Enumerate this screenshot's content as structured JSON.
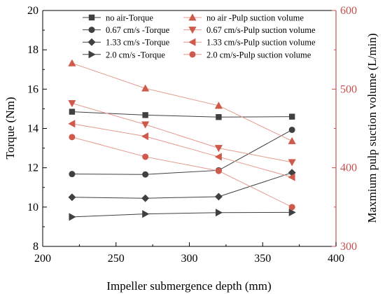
{
  "chart_data": {
    "type": "line",
    "xlabel": "Impeller submergence depth (mm)",
    "ylabel": "Torque (Nm)",
    "y2label": "Maxmium pulp suction volume (L/min)",
    "xlim": [
      200,
      400
    ],
    "ylim": [
      8,
      20
    ],
    "y2lim": [
      300,
      600
    ],
    "x_ticks": [
      200,
      250,
      300,
      350,
      400
    ],
    "y_ticks": [
      8,
      10,
      12,
      14,
      16,
      18,
      20
    ],
    "y2_ticks": [
      300,
      400,
      500,
      600
    ],
    "grid": false,
    "legend_position": "top-center",
    "x": [
      220,
      270,
      320,
      370
    ],
    "colors": {
      "torque": "#404040",
      "pulp": "#cf5a4c",
      "pulp_line": "#e59a8e",
      "right_axis": "#c0504d"
    },
    "series": [
      {
        "name": "no air-Torque",
        "axis": "left",
        "marker": "square",
        "values": [
          14.85,
          14.68,
          14.58,
          14.6
        ]
      },
      {
        "name": "0.67 cm/s -Torque",
        "axis": "left",
        "marker": "circle",
        "values": [
          11.68,
          11.66,
          11.87,
          13.93
        ]
      },
      {
        "name": "1.33 cm/s -Torque",
        "axis": "left",
        "marker": "diamond",
        "values": [
          10.5,
          10.45,
          10.53,
          11.75
        ]
      },
      {
        "name": "2.0 cm/s -Torque",
        "axis": "left",
        "marker": "triangle-right",
        "values": [
          9.5,
          9.65,
          9.72,
          9.73
        ]
      },
      {
        "name": "no air -Pulp suction volume",
        "axis": "right",
        "marker": "triangle-up",
        "values": [
          533,
          501,
          479,
          434
        ]
      },
      {
        "name": "0.67 cm/s-Pulp suction volume",
        "axis": "right",
        "marker": "triangle-down",
        "values": [
          482,
          455,
          425,
          407
        ]
      },
      {
        "name": "1.33 cm/s-Pulp suction volume",
        "axis": "right",
        "marker": "triangle-left",
        "values": [
          456,
          440,
          414,
          388
        ]
      },
      {
        "name": "2.0 cm/s-Pulp suction volume",
        "axis": "right",
        "marker": "circle",
        "values": [
          439,
          414,
          396,
          350
        ]
      }
    ]
  }
}
